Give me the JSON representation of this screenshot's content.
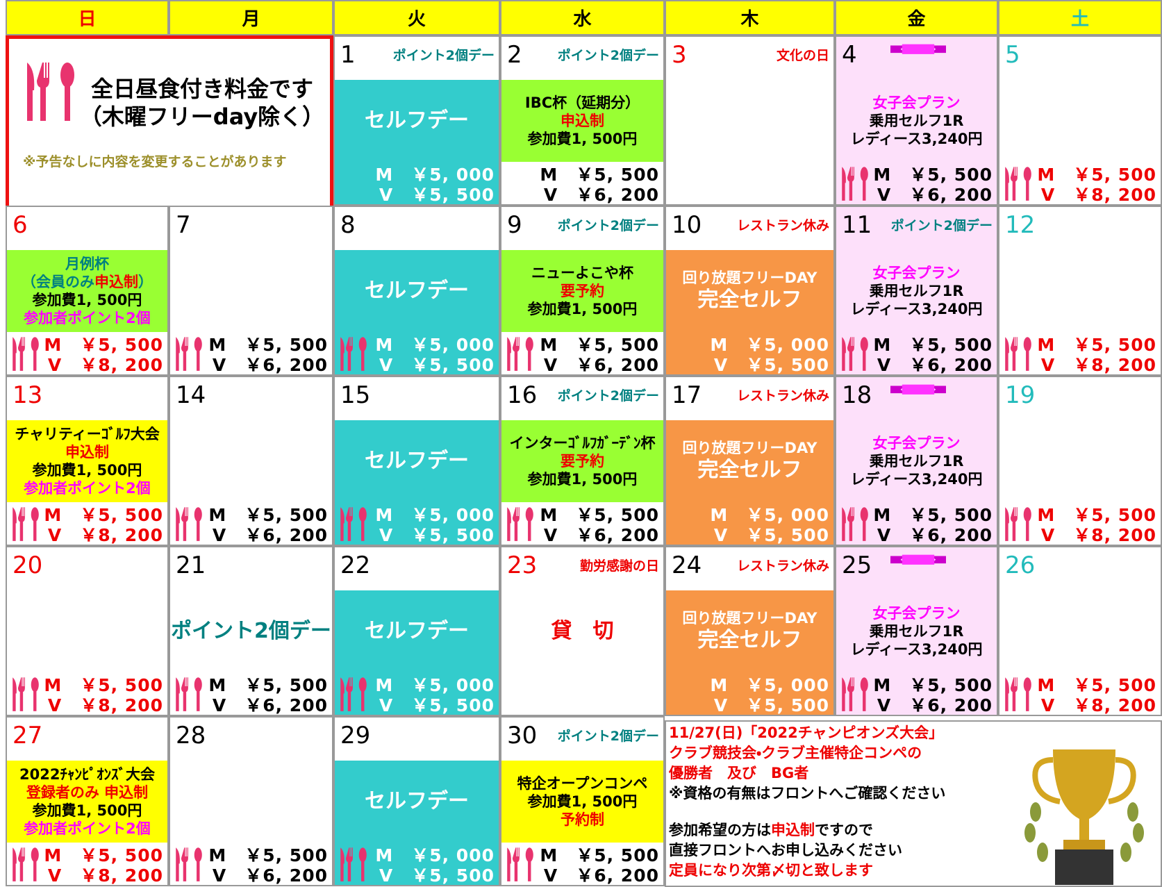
{
  "header": {
    "days": [
      "日",
      "月",
      "火",
      "水",
      "木",
      "金",
      "土"
    ],
    "colors": [
      "#ee0000",
      "#000000",
      "#000000",
      "#000000",
      "#000000",
      "#000000",
      "#22bbbb"
    ],
    "bg": "#ffff00"
  },
  "notice": {
    "lines": [
      "全日昼食付き料金です",
      "（木曜フリーday除く）"
    ],
    "note": "※予告なしに内容を変更することがあります"
  },
  "weeks": [
    [
      {
        "date": "1",
        "date_color": "#000000",
        "tag": {
          "text": "ポイント2個デー",
          "color": "#008080"
        },
        "band": {
          "color": "#33cccc",
          "lines": [
            {
              "text": "セルフデー",
              "color": "#ffffff"
            }
          ]
        },
        "prices": {
          "color": "#ffffff",
          "bg": "#33cccc",
          "fork": false,
          "lines": [
            "M　￥5, 000",
            "V　￥5, 500"
          ]
        }
      },
      {
        "date": "2",
        "date_color": "#000000",
        "tag": {
          "text": "ポイント2個デー",
          "color": "#008080"
        },
        "band": {
          "color": "#99ff33",
          "lines": [
            {
              "text": "IBC杯（延期分）",
              "color": "#000000"
            },
            {
              "text": "申込制",
              "color": "#ee0000"
            },
            {
              "text": "参加費1, 500円",
              "color": "#000000"
            }
          ]
        },
        "prices": {
          "color": "#000000",
          "fork": false,
          "lines": [
            "M　￥5, 500",
            "V　￥6, 200"
          ]
        }
      },
      {
        "date": "3",
        "date_color": "#ee0000",
        "tag": {
          "text": "文化の日",
          "color": "#ee0000"
        }
      },
      {
        "date": "4",
        "date_color": "#000000",
        "bg": "#fde0fa",
        "ribbon": true,
        "band": {
          "lines": [
            {
              "text": "女子会プラン",
              "color": "#ff00ff"
            },
            {
              "text": "乗用セルフ1R",
              "color": "#000000"
            },
            {
              "text": "レディース3,240円",
              "color": "#000000"
            }
          ]
        },
        "prices": {
          "color": "#000000",
          "fork": true,
          "lines": [
            "M　￥5, 500",
            "V　￥6, 200"
          ]
        }
      },
      {
        "date": "5",
        "date_color": "#22bbbb",
        "prices": {
          "color": "#ee0000",
          "fork": true,
          "lines": [
            "M　￥5, 500",
            "V　￥8, 200"
          ]
        }
      }
    ],
    [
      {
        "date": "6",
        "date_color": "#ee0000",
        "band": {
          "color": "#99ff33",
          "lines": [
            {
              "text": "月例杯",
              "color": "#008080"
            },
            {
              "parts": [
                {
                  "text": "（会員のみ",
                  "color": "#008080"
                },
                {
                  "text": "申込制",
                  "color": "#ee0000"
                },
                {
                  "text": "）",
                  "color": "#008080"
                }
              ]
            },
            {
              "text": "参加費1, 500円",
              "color": "#000000"
            },
            {
              "text": "参加者ポイント2個",
              "color": "#ff00ff"
            }
          ]
        },
        "prices": {
          "color": "#ee0000",
          "fork": true,
          "lines": [
            "M　￥5, 500",
            "V　￥8, 200"
          ]
        }
      },
      {
        "date": "7",
        "date_color": "#000000",
        "prices": {
          "color": "#000000",
          "fork": true,
          "lines": [
            "M　￥5, 500",
            "V　￥6, 200"
          ]
        }
      },
      {
        "date": "8",
        "date_color": "#000000",
        "band": {
          "color": "#33cccc",
          "lines": [
            {
              "text": "セルフデー",
              "color": "#ffffff"
            }
          ]
        },
        "prices": {
          "color": "#ffffff",
          "bg": "#33cccc",
          "fork": true,
          "lines": [
            "M　￥5, 000",
            "V　￥5, 500"
          ]
        }
      },
      {
        "date": "9",
        "date_color": "#000000",
        "tag": {
          "text": "ポイント2個デー",
          "color": "#008080"
        },
        "band": {
          "color": "#99ff33",
          "lines": [
            {
              "text": "ニューよこや杯",
              "color": "#000000"
            },
            {
              "text": "要予約",
              "color": "#ee0000"
            },
            {
              "text": "参加費1, 500円",
              "color": "#000000"
            }
          ]
        },
        "prices": {
          "color": "#000000",
          "fork": true,
          "lines": [
            "M　￥5, 500",
            "V　￥6, 200"
          ]
        }
      },
      {
        "date": "10",
        "date_color": "#000000",
        "tag": {
          "text": "レストラン休み",
          "color": "#ee0000"
        },
        "band": {
          "color": "#f79646",
          "lines": [
            {
              "text": "回り放題フリーDAY",
              "color": "#ffffff"
            },
            {
              "text": "完全セルフ",
              "color": "#ffffff"
            }
          ]
        },
        "prices": {
          "color": "#ffffff",
          "bg": "#f79646",
          "fork": false,
          "lines": [
            "M　￥5, 000",
            "V　￥5, 500"
          ]
        }
      },
      {
        "date": "11",
        "date_color": "#000000",
        "bg": "#fde0fa",
        "tag": {
          "text": "ポイント2個デー",
          "color": "#008080"
        },
        "band": {
          "lines": [
            {
              "text": "女子会プラン",
              "color": "#ff00ff"
            },
            {
              "text": "乗用セルフ1R",
              "color": "#000000"
            },
            {
              "text": "レディース3,240円",
              "color": "#000000"
            }
          ]
        },
        "prices": {
          "color": "#000000",
          "fork": true,
          "lines": [
            "M　￥5, 500",
            "V　￥6, 200"
          ]
        }
      },
      {
        "date": "12",
        "date_color": "#22bbbb",
        "prices": {
          "color": "#ee0000",
          "fork": true,
          "lines": [
            "M　￥5, 500",
            "V　￥8, 200"
          ]
        }
      }
    ],
    [
      {
        "date": "13",
        "date_color": "#ee0000",
        "band": {
          "color": "#ffff00",
          "lines": [
            {
              "text": "チャリティーｺﾞﾙﾌ大会",
              "color": "#000000"
            },
            {
              "text": "申込制",
              "color": "#ee0000"
            },
            {
              "text": "参加費1, 500円",
              "color": "#000000"
            },
            {
              "text": "参加者ポイント2個",
              "color": "#ff00ff"
            }
          ]
        },
        "prices": {
          "color": "#ee0000",
          "fork": true,
          "lines": [
            "M　￥5, 500",
            "V　￥8, 200"
          ]
        }
      },
      {
        "date": "14",
        "date_color": "#000000",
        "prices": {
          "color": "#000000",
          "fork": true,
          "lines": [
            "M　￥5, 500",
            "V　￥6, 200"
          ]
        }
      },
      {
        "date": "15",
        "date_color": "#000000",
        "band": {
          "color": "#33cccc",
          "lines": [
            {
              "text": "セルフデー",
              "color": "#ffffff"
            }
          ]
        },
        "prices": {
          "color": "#ffffff",
          "bg": "#33cccc",
          "fork": true,
          "lines": [
            "M　￥5, 000",
            "V　￥5, 500"
          ]
        }
      },
      {
        "date": "16",
        "date_color": "#000000",
        "tag": {
          "text": "ポイント2個デー",
          "color": "#008080"
        },
        "band": {
          "color": "#99ff33",
          "lines": [
            {
              "text": "インターｺﾞﾙﾌｶﾞｰﾃﾞﾝ杯",
              "color": "#000000"
            },
            {
              "text": "要予約",
              "color": "#ee0000"
            },
            {
              "text": "参加費1, 500円",
              "color": "#000000"
            }
          ]
        },
        "prices": {
          "color": "#000000",
          "fork": true,
          "lines": [
            "M　￥5, 500",
            "V　￥6, 200"
          ]
        }
      },
      {
        "date": "17",
        "date_color": "#000000",
        "tag": {
          "text": "レストラン休み",
          "color": "#ee0000"
        },
        "band": {
          "color": "#f79646",
          "lines": [
            {
              "text": "回り放題フリーDAY",
              "color": "#ffffff"
            },
            {
              "text": "完全セルフ",
              "color": "#ffffff"
            }
          ]
        },
        "prices": {
          "color": "#ffffff",
          "bg": "#f79646",
          "fork": false,
          "lines": [
            "M　￥5, 000",
            "V　￥5, 500"
          ]
        }
      },
      {
        "date": "18",
        "date_color": "#000000",
        "bg": "#fde0fa",
        "ribbon": true,
        "band": {
          "lines": [
            {
              "text": "女子会プラン",
              "color": "#ff00ff"
            },
            {
              "text": "乗用セルフ1R",
              "color": "#000000"
            },
            {
              "text": "レディース3,240円",
              "color": "#000000"
            }
          ]
        },
        "prices": {
          "color": "#000000",
          "fork": true,
          "lines": [
            "M　￥5, 500",
            "V　￥6, 200"
          ]
        }
      },
      {
        "date": "19",
        "date_color": "#22bbbb",
        "prices": {
          "color": "#ee0000",
          "fork": true,
          "lines": [
            "M　￥5, 500",
            "V　￥8, 200"
          ]
        }
      }
    ],
    [
      {
        "date": "20",
        "date_color": "#ee0000",
        "prices": {
          "color": "#ee0000",
          "fork": true,
          "lines": [
            "M　￥5, 500",
            "V　￥8, 200"
          ]
        }
      },
      {
        "date": "21",
        "date_color": "#000000",
        "band": {
          "lines": [
            {
              "text": "ポイント2個デー",
              "color": "#008080"
            }
          ]
        },
        "prices": {
          "color": "#000000",
          "fork": true,
          "lines": [
            "M　￥5, 500",
            "V　￥6, 200"
          ]
        }
      },
      {
        "date": "22",
        "date_color": "#000000",
        "band": {
          "color": "#33cccc",
          "lines": [
            {
              "text": "セルフデー",
              "color": "#ffffff"
            }
          ]
        },
        "prices": {
          "color": "#ffffff",
          "bg": "#33cccc",
          "fork": true,
          "lines": [
            "M　￥5, 000",
            "V　￥5, 500"
          ]
        }
      },
      {
        "date": "23",
        "date_color": "#ee0000",
        "tag": {
          "text": "勤労感謝の日",
          "color": "#ee0000"
        },
        "band": {
          "lines": [
            {
              "text": "貸　切",
              "color": "#ee0000"
            }
          ]
        }
      },
      {
        "date": "24",
        "date_color": "#000000",
        "tag": {
          "text": "レストラン休み",
          "color": "#ee0000"
        },
        "band": {
          "color": "#f79646",
          "lines": [
            {
              "text": "回り放題フリーDAY",
              "color": "#ffffff"
            },
            {
              "text": "完全セルフ",
              "color": "#ffffff"
            }
          ]
        },
        "prices": {
          "color": "#ffffff",
          "bg": "#f79646",
          "fork": false,
          "lines": [
            "M　￥5, 000",
            "V　￥5, 500"
          ]
        }
      },
      {
        "date": "25",
        "date_color": "#000000",
        "bg": "#fde0fa",
        "ribbon": true,
        "band": {
          "lines": [
            {
              "text": "女子会プラン",
              "color": "#ff00ff"
            },
            {
              "text": "乗用セルフ1R",
              "color": "#000000"
            },
            {
              "text": "レディース3,240円",
              "color": "#000000"
            }
          ]
        },
        "prices": {
          "color": "#000000",
          "fork": true,
          "lines": [
            "M　￥5, 500",
            "V　￥6, 200"
          ]
        }
      },
      {
        "date": "26",
        "date_color": "#22bbbb",
        "prices": {
          "color": "#ee0000",
          "fork": true,
          "lines": [
            "M　￥5, 500",
            "V　￥8, 200"
          ]
        }
      }
    ],
    [
      {
        "date": "27",
        "date_color": "#ee0000",
        "band": {
          "color": "#ffff00",
          "lines": [
            {
              "text": "2022ﾁｬﾝﾋﾟｵﾝｽﾞ大会",
              "color": "#000000"
            },
            {
              "text": "登録者のみ 申込制",
              "color": "#ee0000"
            },
            {
              "text": "参加費1, 500円",
              "color": "#000000"
            },
            {
              "text": "参加者ポイント2個",
              "color": "#ff00ff"
            }
          ]
        },
        "prices": {
          "color": "#ee0000",
          "fork": true,
          "lines": [
            "M　￥5, 500",
            "V　￥8, 200"
          ]
        }
      },
      {
        "date": "28",
        "date_color": "#000000",
        "prices": {
          "color": "#000000",
          "fork": true,
          "lines": [
            "M　￥5, 500",
            "V　￥6, 200"
          ]
        }
      },
      {
        "date": "29",
        "date_color": "#000000",
        "band": {
          "color": "#33cccc",
          "lines": [
            {
              "text": "セルフデー",
              "color": "#ffffff"
            }
          ]
        },
        "prices": {
          "color": "#ffffff",
          "bg": "#33cccc",
          "fork": true,
          "lines": [
            "M　￥5, 000",
            "V　￥5, 500"
          ]
        }
      },
      {
        "date": "30",
        "date_color": "#000000",
        "tag": {
          "text": "ポイント2個デー",
          "color": "#008080"
        },
        "band": {
          "color": "#ffff00",
          "lines": [
            {
              "text": "特企オープンコンペ",
              "color": "#000000"
            },
            {
              "text": "参加費1, 500円",
              "color": "#000000"
            },
            {
              "text": "予約制",
              "color": "#ee0000"
            }
          ]
        },
        "prices": {
          "color": "#000000",
          "fork": true,
          "lines": [
            "M　￥5, 500",
            "V　￥6, 200"
          ]
        }
      }
    ]
  ],
  "announcement": {
    "lines": [
      {
        "text": "11/27(日)「2022チャンピオンズ大会」",
        "color": "#ee0000"
      },
      {
        "text": "クラブ競技会・クラブ主催特企コンペの",
        "color": "#ee0000"
      },
      {
        "text": "優勝者　及び　BG者",
        "color": "#ee0000"
      },
      {
        "text": "※資格の有無はフロントへご確認ください",
        "color": "#000000"
      },
      {
        "parts": [
          {
            "text": "参加希望の方は",
            "color": "#000000"
          },
          {
            "text": "申込制",
            "color": "#ee0000"
          },
          {
            "text": "ですので",
            "color": "#000000"
          }
        ]
      },
      {
        "text": "直接フロントへお申し込みください",
        "color": "#000000"
      },
      {
        "text": "定員になり次第〆切と致します",
        "color": "#ee0000"
      }
    ]
  }
}
